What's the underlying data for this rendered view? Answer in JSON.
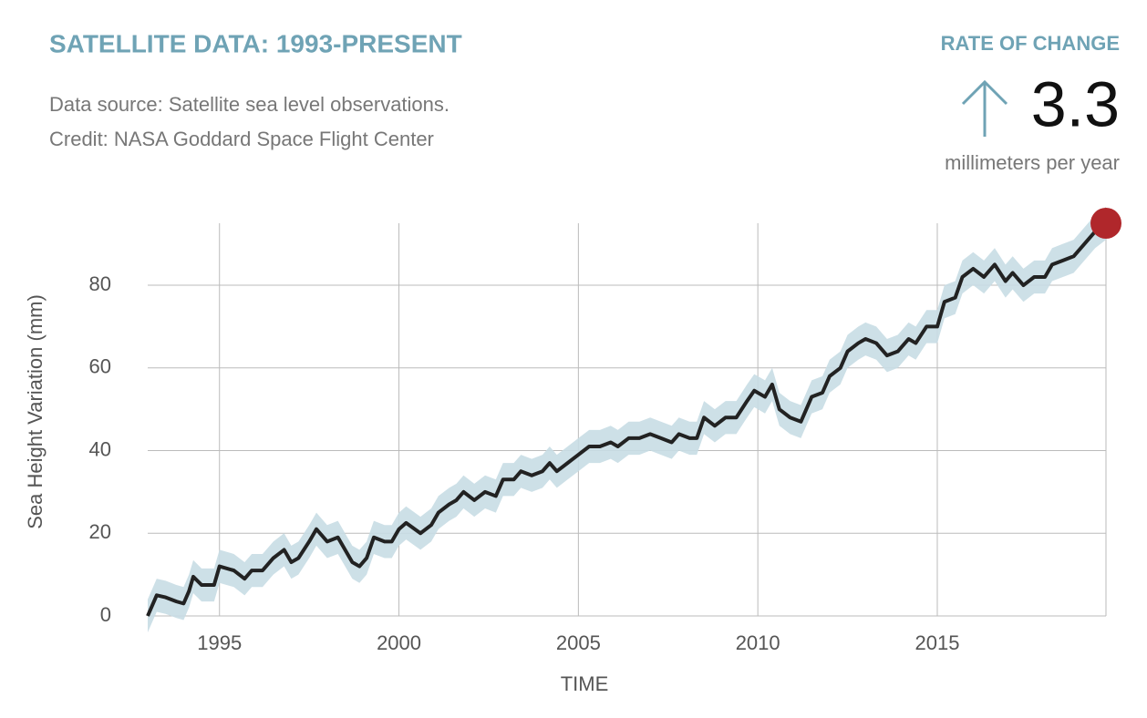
{
  "chart_data": {
    "type": "line",
    "title": "SATELLITE DATA: 1993-PRESENT",
    "subtitle": [
      "Data source: Satellite sea level observations.",
      "Credit: NASA Goddard Space Flight Center"
    ],
    "rate": {
      "label": "RATE OF CHANGE",
      "value": 3.3,
      "unit": "millimeters per year"
    },
    "x_label": "TIME",
    "y_label": "Sea Height Variation (mm)",
    "x": [
      1993.0,
      1993.25,
      1993.5,
      1993.8,
      1994.0,
      1994.15,
      1994.27,
      1994.5,
      1994.85,
      1995.0,
      1995.4,
      1995.7,
      1995.9,
      1996.2,
      1996.5,
      1996.8,
      1997.0,
      1997.2,
      1997.5,
      1997.7,
      1998.0,
      1998.3,
      1998.7,
      1998.9,
      1999.1,
      1999.3,
      1999.6,
      1999.8,
      2000.0,
      2000.2,
      2000.6,
      2000.9,
      2001.1,
      2001.4,
      2001.6,
      2001.8,
      2002.1,
      2002.4,
      2002.7,
      2002.9,
      2003.2,
      2003.4,
      2003.7,
      2004.0,
      2004.2,
      2004.4,
      2004.7,
      2005.0,
      2005.3,
      2005.6,
      2005.9,
      2006.1,
      2006.4,
      2006.7,
      2007.0,
      2007.3,
      2007.6,
      2007.8,
      2008.1,
      2008.3,
      2008.5,
      2008.8,
      2009.1,
      2009.4,
      2009.7,
      2009.9,
      2010.2,
      2010.4,
      2010.6,
      2010.9,
      2011.2,
      2011.5,
      2011.8,
      2012.0,
      2012.3,
      2012.5,
      2012.8,
      2013.0,
      2013.3,
      2013.6,
      2013.9,
      2014.2,
      2014.4,
      2014.7,
      2015.0,
      2015.2,
      2015.5,
      2015.7,
      2016.0,
      2016.3,
      2016.6,
      2016.9,
      2017.1,
      2017.4,
      2017.7,
      2018.0,
      2018.2,
      2018.5,
      2018.8,
      2019.1,
      2019.4,
      2019.7
    ],
    "values": [
      0,
      5,
      4.5,
      3.5,
      3,
      6,
      9.5,
      7.5,
      7.5,
      12,
      11,
      9,
      11,
      11,
      14,
      16,
      13,
      14,
      18,
      21,
      18,
      19,
      13,
      12,
      14,
      19,
      18,
      18,
      21,
      22.5,
      20,
      22,
      25,
      27,
      28,
      30,
      28,
      30,
      29,
      33,
      33,
      35,
      34,
      35,
      37,
      35,
      37,
      39,
      41,
      41,
      42,
      41,
      43,
      43,
      44,
      43,
      42,
      44,
      43,
      43,
      48,
      46,
      48,
      48,
      52,
      54.5,
      53,
      56,
      50,
      48,
      47,
      53,
      54,
      58,
      60,
      64,
      66,
      67,
      66,
      63,
      64,
      67,
      66,
      70,
      70,
      76,
      77,
      82,
      84,
      82,
      85,
      81,
      83,
      80,
      82,
      82,
      85,
      86,
      87,
      90,
      93,
      95
    ],
    "band": 4,
    "color": "#222222",
    "band_color": "#c8dde4",
    "point_color": "#b0272b",
    "xlim": [
      1993,
      2019.7
    ],
    "ylim": [
      0,
      95
    ],
    "xticks": [
      1995,
      2000,
      2005,
      2010,
      2015
    ],
    "yticks": [
      0,
      20,
      40,
      60,
      80
    ],
    "grid": true
  }
}
